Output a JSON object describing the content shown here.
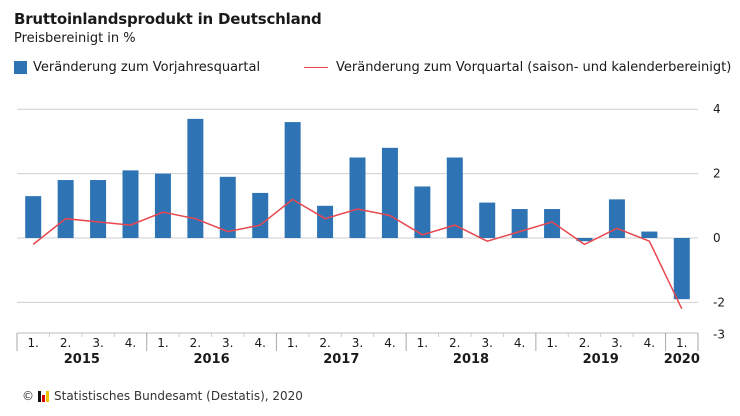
{
  "chart_data": {
    "type": "bar",
    "title": "Bruttoinlandsprodukt in Deutschland",
    "subtitle": "Preisbereinigt in %",
    "xlabel": "",
    "ylabel": "",
    "ylim": [
      -3,
      4
    ],
    "yticks": [
      4,
      2,
      0,
      -2,
      -3
    ],
    "grid": true,
    "legend_position": "top",
    "categories": [
      "1.",
      "2.",
      "3.",
      "4.",
      "1.",
      "2.",
      "3.",
      "4.",
      "1.",
      "2.",
      "3.",
      "4.",
      "1.",
      "2.",
      "3.",
      "4.",
      "1.",
      "2.",
      "3.",
      "4.",
      "1."
    ],
    "groups": [
      {
        "label": "2015",
        "count": 4
      },
      {
        "label": "2016",
        "count": 4
      },
      {
        "label": "2017",
        "count": 4
      },
      {
        "label": "2018",
        "count": 4
      },
      {
        "label": "2019",
        "count": 4
      },
      {
        "label": "2020",
        "count": 1
      }
    ],
    "series": [
      {
        "name": "Veränderung zum Vorjahresquartal",
        "type": "bar",
        "color": "#2e74b5",
        "values": [
          1.3,
          1.8,
          1.8,
          2.1,
          2.0,
          3.7,
          1.9,
          1.4,
          3.6,
          1.0,
          2.5,
          2.8,
          1.6,
          2.5,
          1.1,
          0.9,
          0.9,
          -0.1,
          1.2,
          0.2,
          -1.9
        ]
      },
      {
        "name": "Veränderung zum Vorquartal (saison- und kalenderbereinigt)",
        "type": "line",
        "color": "#e8474f",
        "values": [
          -0.2,
          0.6,
          0.5,
          0.4,
          0.8,
          0.6,
          0.2,
          0.4,
          1.2,
          0.6,
          0.9,
          0.7,
          0.1,
          0.4,
          -0.1,
          0.2,
          0.5,
          -0.2,
          0.3,
          -0.1,
          -2.2
        ]
      }
    ]
  },
  "footer": {
    "copyright": "©",
    "source": "Statistisches Bundesamt (Destatis), 2020"
  }
}
